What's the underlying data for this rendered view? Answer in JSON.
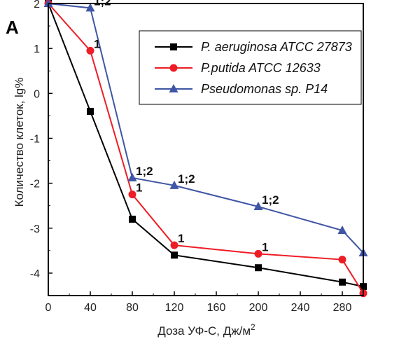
{
  "chart_data": {
    "type": "line",
    "panel_label": "A",
    "xlabel": "Доза УФ-С, Дж/м",
    "xlabel_sup": "2",
    "ylabel": "Количество клеток, lg%",
    "xlim": [
      0,
      300
    ],
    "ylim": [
      -4.5,
      2
    ],
    "x_ticks": [
      0,
      40,
      80,
      120,
      160,
      200,
      240,
      280
    ],
    "y_ticks": [
      2,
      1,
      0,
      -1,
      -2,
      -3,
      -4
    ],
    "grid": false,
    "legend_position": "top-right",
    "series": [
      {
        "name": "P. aeruginosa ATCC 27873",
        "color": "#000000",
        "marker": "square",
        "x": [
          0,
          40,
          80,
          120,
          200,
          280,
          300
        ],
        "y": [
          2.0,
          -0.4,
          -2.8,
          -3.6,
          -3.88,
          -4.2,
          -4.3
        ]
      },
      {
        "name": "P.putida ATCC 12633",
        "color": "#ee1c25",
        "marker": "circle",
        "x": [
          0,
          40,
          80,
          120,
          200,
          280,
          300
        ],
        "y": [
          2.0,
          0.95,
          -2.25,
          -3.38,
          -3.57,
          -3.7,
          -4.45
        ]
      },
      {
        "name": "Pseudomonas sp. P14",
        "color": "#3f55a5",
        "marker": "triangle",
        "x": [
          0,
          40,
          80,
          120,
          200,
          280,
          300
        ],
        "y": [
          2.0,
          1.9,
          -1.88,
          -2.05,
          -2.52,
          -3.05,
          -3.55
        ]
      }
    ],
    "annotations": [
      {
        "text": "1;2",
        "x": 40,
        "y": 1.9
      },
      {
        "text": "1",
        "x": 40,
        "y": 0.95
      },
      {
        "text": "1;2",
        "x": 80,
        "y": -1.88
      },
      {
        "text": "1",
        "x": 80,
        "y": -2.25
      },
      {
        "text": "1;2",
        "x": 120,
        "y": -2.05
      },
      {
        "text": "1",
        "x": 120,
        "y": -3.38
      },
      {
        "text": "1;2",
        "x": 200,
        "y": -2.52
      },
      {
        "text": "1",
        "x": 200,
        "y": -3.57
      }
    ]
  }
}
